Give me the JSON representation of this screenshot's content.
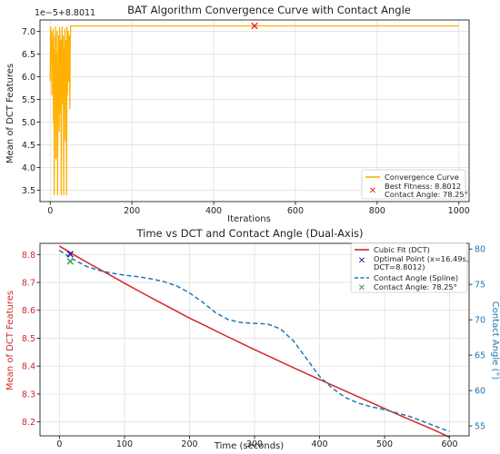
{
  "chart_data": [
    {
      "type": "line",
      "title": "BAT Algorithm Convergence Curve with Contact Angle",
      "xlabel": "Iterations",
      "ylabel": "Mean of DCT Features",
      "offset_text": "1e−5+8.8011",
      "xlim": [
        -25,
        1025
      ],
      "ylim": [
        3.25,
        7.25
      ],
      "xticks": [
        0,
        200,
        400,
        600,
        800,
        1000
      ],
      "yticks": [
        3.5,
        4.0,
        4.5,
        5.0,
        5.5,
        6.0,
        6.5,
        7.0
      ],
      "grid": true,
      "legend_position": "bottom-right",
      "colors": {
        "curve": "#ffb000",
        "best": "#e8251c"
      },
      "series": [
        {
          "name": "Convergence Curve",
          "x": [
            0,
            1,
            2,
            3,
            4,
            5,
            6,
            7,
            8,
            9,
            10,
            11,
            12,
            13,
            14,
            15,
            16,
            17,
            18,
            19,
            20,
            21,
            22,
            23,
            24,
            25,
            26,
            27,
            28,
            29,
            30,
            31,
            32,
            33,
            34,
            35,
            36,
            37,
            38,
            39,
            40,
            41,
            42,
            43,
            44,
            45,
            46,
            47,
            48,
            49,
            50,
            52,
            55,
            60,
            100,
            200,
            300,
            400,
            500,
            600,
            700,
            800,
            900,
            1000
          ],
          "y": [
            5.9,
            7.1,
            6.4,
            7.0,
            5.6,
            6.8,
            6.2,
            7.05,
            5.0,
            6.6,
            3.4,
            6.9,
            5.8,
            7.1,
            4.2,
            6.5,
            5.5,
            7.0,
            3.4,
            6.2,
            5.9,
            6.9,
            4.8,
            7.08,
            6.6,
            5.2,
            6.8,
            3.4,
            6.0,
            7.1,
            6.4,
            5.4,
            6.9,
            3.4,
            6.6,
            5.8,
            7.05,
            4.6,
            6.8,
            6.1,
            3.4,
            7.1,
            5.6,
            6.6,
            7.0,
            5.9,
            6.8,
            6.9,
            5.3,
            6.7,
            7.12,
            7.12,
            7.12,
            7.12,
            7.12,
            7.12,
            7.12,
            7.12,
            7.12,
            7.12,
            7.12,
            7.12,
            7.12,
            7.12
          ]
        }
      ],
      "best_point": {
        "x": 500,
        "y": 7.12
      },
      "legend": [
        {
          "label": "Convergence Curve"
        },
        {
          "label": "Best Fitness: 8.8012",
          "label2": "Contact Angle: 78.25°"
        }
      ]
    },
    {
      "type": "line",
      "title": "Time vs DCT and Contact Angle (Dual-Axis)",
      "xlabel": "Time (seconds)",
      "ylabel": "Mean of DCT Features",
      "y2label": "Contact Angle (°)",
      "xlim": [
        -30,
        630
      ],
      "ylim": [
        8.15,
        8.84
      ],
      "y2lim": [
        53.6,
        80.8
      ],
      "xticks": [
        0,
        100,
        200,
        300,
        400,
        500,
        600
      ],
      "yticks": [
        8.2,
        8.3,
        8.4,
        8.5,
        8.6,
        8.7,
        8.8
      ],
      "y2ticks": [
        55,
        60,
        65,
        70,
        75,
        80
      ],
      "grid": true,
      "legend_position": "top-right",
      "colors": {
        "dct": "#d62728",
        "angle": "#1f77b4",
        "optimal": "#1c1cad",
        "contact": "#2ca02c"
      },
      "series": [
        {
          "name": "Cubic Fit (DCT)",
          "axis": "left",
          "x": [
            0,
            25,
            50,
            75,
            100,
            125,
            150,
            175,
            200,
            225,
            250,
            275,
            300,
            325,
            350,
            375,
            400,
            425,
            450,
            475,
            500,
            525,
            550,
            575,
            600
          ],
          "y": [
            8.83,
            8.795,
            8.762,
            8.73,
            8.697,
            8.665,
            8.634,
            8.603,
            8.572,
            8.544,
            8.515,
            8.487,
            8.459,
            8.432,
            8.405,
            8.378,
            8.352,
            8.326,
            8.3,
            8.274,
            8.248,
            8.222,
            8.197,
            8.172,
            8.145
          ]
        },
        {
          "name": "Contact Angle (Spline)",
          "axis": "right",
          "x": [
            0,
            20,
            40,
            60,
            80,
            100,
            120,
            140,
            160,
            180,
            200,
            220,
            240,
            260,
            280,
            300,
            320,
            340,
            360,
            380,
            400,
            420,
            440,
            460,
            480,
            500,
            520,
            540,
            560,
            580,
            600
          ],
          "y": [
            79.8,
            78.6,
            77.6,
            77.0,
            76.6,
            76.3,
            76.1,
            75.8,
            75.4,
            74.8,
            73.8,
            72.5,
            71.0,
            70.0,
            69.6,
            69.5,
            69.4,
            68.7,
            67.0,
            64.5,
            62.0,
            60.3,
            59.0,
            58.2,
            57.7,
            57.3,
            56.8,
            56.3,
            55.6,
            54.9,
            54.2
          ]
        }
      ],
      "optimal_point": {
        "x": 16.49,
        "y": 8.8012
      },
      "contact_point": {
        "x": 16.49,
        "y": 78.25
      },
      "legend": [
        {
          "label": "Cubic Fit (DCT)"
        },
        {
          "label": "Optimal Point (x=16.49s,",
          "label2": "DCT=8.8012)"
        },
        {
          "label": "Contact Angle (Spline)"
        },
        {
          "label": "Contact Angle: 78.25°"
        }
      ]
    }
  ]
}
